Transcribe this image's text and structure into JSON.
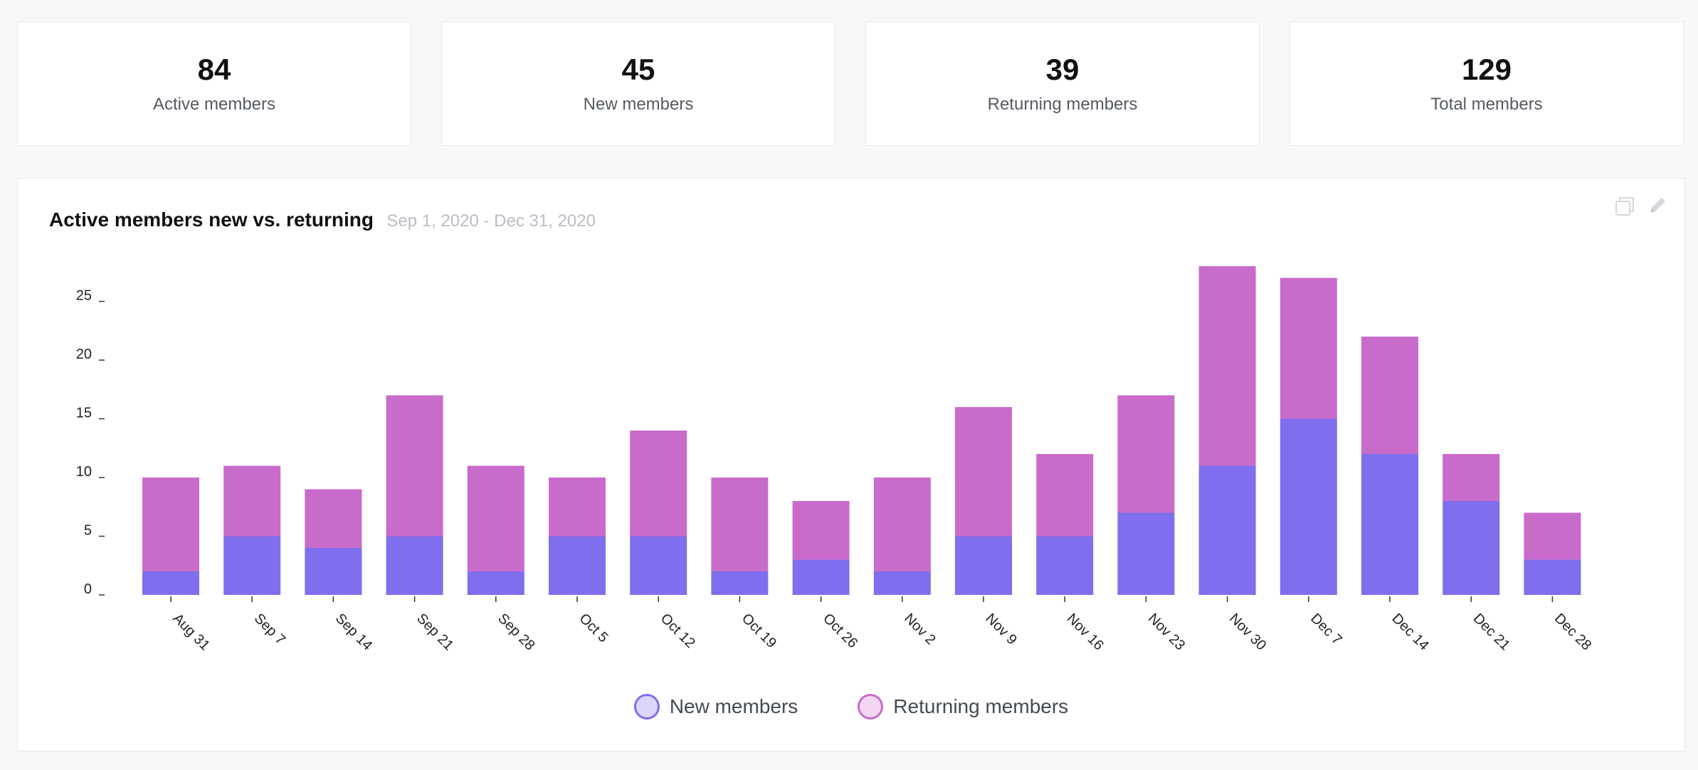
{
  "kpis": [
    {
      "value": "84",
      "label": "Active members"
    },
    {
      "value": "45",
      "label": "New members"
    },
    {
      "value": "39",
      "label": "Returning members"
    },
    {
      "value": "129",
      "label": "Total members"
    }
  ],
  "chart_card": {
    "title": "Active members new vs. returning",
    "date_range": "Sep 1, 2020 - Dec 31, 2020",
    "icons": [
      "duplicate-icon",
      "edit-icon"
    ]
  },
  "colors": {
    "new": "#7f6eed",
    "returning": "#c96bcb",
    "new_light": "#dcd6fa",
    "returning_light": "#f3d6f2"
  },
  "chart_data": {
    "type": "bar",
    "stacked": true,
    "title": "Active members new vs. returning",
    "subtitle": "Sep 1, 2020 - Dec 31, 2020",
    "categories": [
      "Aug 31",
      "Sep 7",
      "Sep 14",
      "Sep 21",
      "Sep 28",
      "Oct 5",
      "Oct 12",
      "Oct 19",
      "Oct 26",
      "Nov 2",
      "Nov 9",
      "Nov 16",
      "Nov 23",
      "Nov 30",
      "Dec 7",
      "Dec 14",
      "Dec 21",
      "Dec 28"
    ],
    "series": [
      {
        "name": "New members",
        "values": [
          2,
          5,
          4,
          5,
          2,
          5,
          5,
          2,
          3,
          2,
          5,
          5,
          7,
          11,
          15,
          12,
          8,
          3
        ]
      },
      {
        "name": "Returning members",
        "values": [
          8,
          6,
          5,
          12,
          9,
          5,
          9,
          8,
          5,
          8,
          11,
          7,
          10,
          17,
          12,
          10,
          4,
          4
        ]
      }
    ],
    "yticks": [
      0,
      5,
      10,
      15,
      20,
      25
    ],
    "ylim": [
      0,
      28
    ],
    "xlabel": "",
    "ylabel": "",
    "grid": false,
    "legend": "bottom-center"
  }
}
